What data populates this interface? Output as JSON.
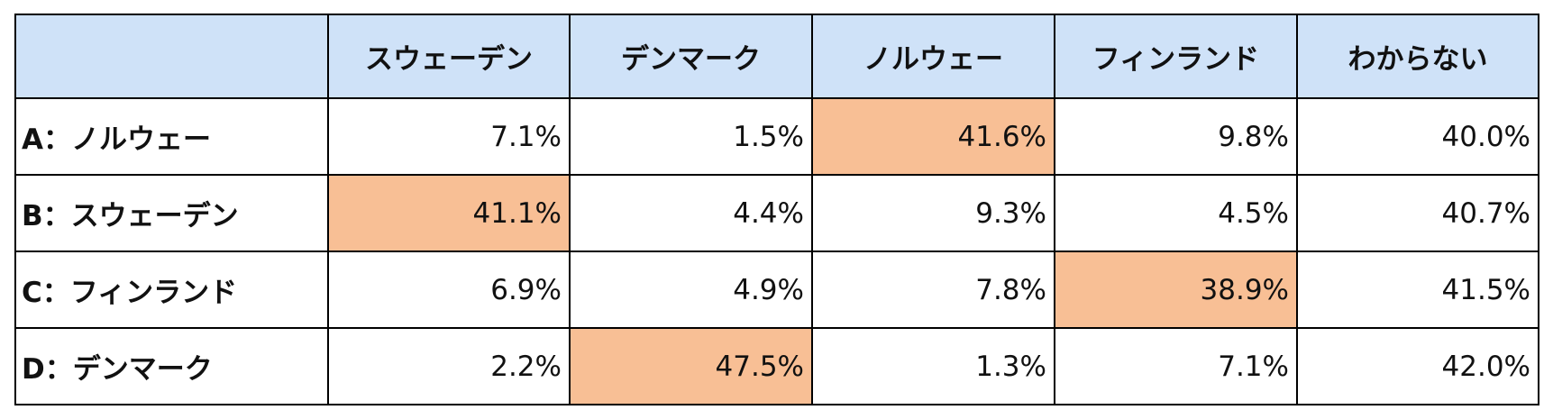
{
  "table": {
    "highlight_color": "#f8bf95",
    "header_color": "#cfe2f8",
    "columns": [
      "スウェーデン",
      "デンマーク",
      "ノルウェー",
      "フィンランド",
      "わからない"
    ],
    "rows": [
      {
        "label": "A：ノルウェー",
        "cells": [
          "7.1%",
          "1.5%",
          "41.6%",
          "9.8%",
          "40.0%"
        ],
        "highlighted": 2
      },
      {
        "label": "B：スウェーデン",
        "cells": [
          "41.1%",
          "4.4%",
          "9.3%",
          "4.5%",
          "40.7%"
        ],
        "highlighted": 0
      },
      {
        "label": "C：フィンランド",
        "cells": [
          "6.9%",
          "4.9%",
          "7.8%",
          "38.9%",
          "41.5%"
        ],
        "highlighted": 3
      },
      {
        "label": "D：デンマーク",
        "cells": [
          "2.2%",
          "47.5%",
          "1.3%",
          "7.1%",
          "42.0%"
        ],
        "highlighted": 1
      }
    ]
  }
}
